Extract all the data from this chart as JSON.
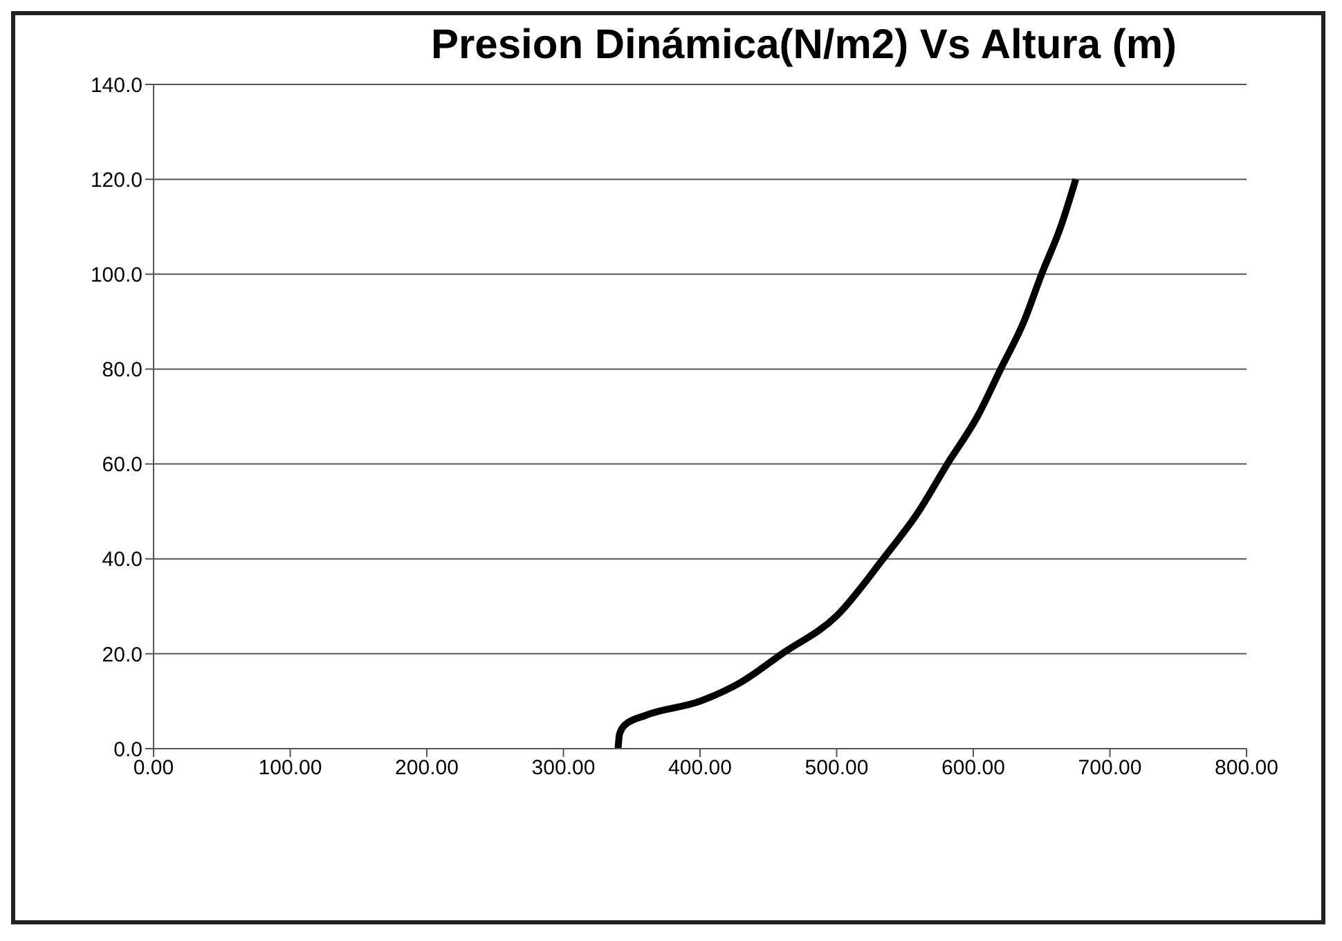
{
  "chart_data": {
    "type": "line",
    "title": "Presion Dinámica(N/m2) Vs Altura (m)",
    "x": [
      340,
      341,
      345,
      360,
      400,
      430,
      460,
      500,
      534,
      560,
      581,
      603,
      620,
      637,
      650,
      664,
      675
    ],
    "series": [
      {
        "color": "#000000",
        "values": [
          0,
          3,
          5,
          7,
          10,
          14,
          20,
          28,
          40,
          50,
          60,
          70,
          80,
          90,
          100,
          110,
          120
        ]
      }
    ],
    "xlim": [
      0,
      800
    ],
    "xticks": [
      {
        "value": 0,
        "label": "0.00"
      },
      {
        "value": 100,
        "label": "100.00"
      },
      {
        "value": 200,
        "label": "200.00"
      },
      {
        "value": 300,
        "label": "300.00"
      },
      {
        "value": 400,
        "label": "400.00"
      },
      {
        "value": 500,
        "label": "500.00"
      },
      {
        "value": 600,
        "label": "600.00"
      },
      {
        "value": 700,
        "label": "700.00"
      },
      {
        "value": 800,
        "label": "800.00"
      }
    ],
    "ylim": [
      0,
      140
    ],
    "yticks": [
      {
        "value": 0,
        "label": "0.0"
      },
      {
        "value": 20,
        "label": "20.0"
      },
      {
        "value": 40,
        "label": "40.0"
      },
      {
        "value": 60,
        "label": "60.0"
      },
      {
        "value": 80,
        "label": "80.0"
      },
      {
        "value": 100,
        "label": "100.0"
      },
      {
        "value": 120,
        "label": "120.0"
      },
      {
        "value": 140,
        "label": "140.0"
      }
    ],
    "grid": "y",
    "marker": "none",
    "line_style": "solid",
    "legend": false
  }
}
